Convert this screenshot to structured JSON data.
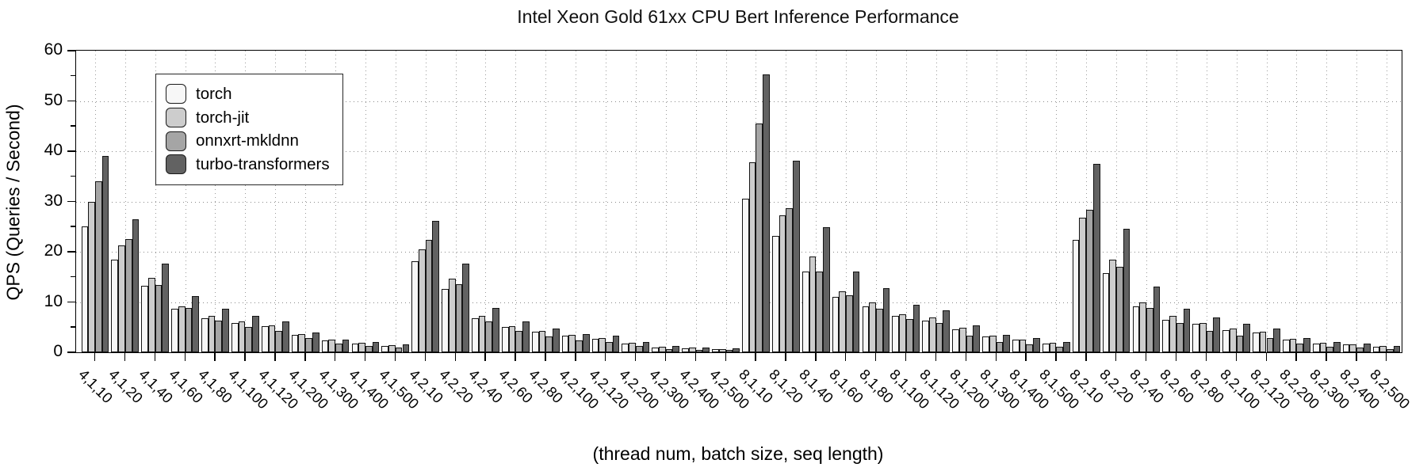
{
  "chart_data": {
    "type": "bar",
    "title": "Intel Xeon Gold 61xx CPU Bert Inference Performance",
    "xlabel": "(thread num, batch size, seq length)",
    "ylabel": "QPS (Queries / Second)",
    "ylim": [
      0,
      60
    ],
    "yticks": [
      0,
      10,
      20,
      30,
      40,
      50,
      60
    ],
    "grid": true,
    "legend_position": "upper-left",
    "categories": [
      "4,1,10",
      "4,1,20",
      "4,1,40",
      "4,1,60",
      "4,1,80",
      "4,1,100",
      "4,1,120",
      "4,1,200",
      "4,1,300",
      "4,1,400",
      "4,1,500",
      "4,2,10",
      "4,2,20",
      "4,2,40",
      "4,2,60",
      "4,2,80",
      "4,2,100",
      "4,2,120",
      "4,2,200",
      "4,2,300",
      "4,2,400",
      "4,2,500",
      "8,1,10",
      "8,1,20",
      "8,1,40",
      "8,1,60",
      "8,1,80",
      "8,1,100",
      "8,1,120",
      "8,1,200",
      "8,1,300",
      "8,1,400",
      "8,1,500",
      "8,2,10",
      "8,2,20",
      "8,2,40",
      "8,2,60",
      "8,2,80",
      "8,2,100",
      "8,2,120",
      "8,2,200",
      "8,2,300",
      "8,2,400",
      "8,2,500"
    ],
    "series": [
      {
        "name": "torch",
        "color": "#f7f7f7",
        "values": [
          25.0,
          18.5,
          13.2,
          8.7,
          6.8,
          5.9,
          5.2,
          3.4,
          2.3,
          1.8,
          1.3,
          18.1,
          12.6,
          6.8,
          5.0,
          4.1,
          3.3,
          2.7,
          1.7,
          1.0,
          0.8,
          0.6,
          30.6,
          23.2,
          16.1,
          11.1,
          9.1,
          7.2,
          6.3,
          4.5,
          3.2,
          2.5,
          1.8,
          22.3,
          15.7,
          9.2,
          6.5,
          5.6,
          4.4,
          4.0,
          2.6,
          1.8,
          1.5,
          1.1
        ]
      },
      {
        "name": "torch-jit",
        "color": "#cdcdcd",
        "values": [
          30.0,
          21.3,
          14.8,
          9.2,
          7.3,
          6.2,
          5.4,
          3.7,
          2.5,
          1.9,
          1.4,
          20.4,
          14.6,
          7.3,
          5.2,
          4.2,
          3.4,
          2.8,
          1.9,
          1.1,
          0.9,
          0.7,
          37.8,
          27.3,
          19.1,
          12.1,
          10.0,
          7.6,
          6.9,
          4.9,
          3.3,
          2.6,
          1.9,
          26.8,
          18.4,
          10.0,
          7.3,
          5.9,
          4.8,
          4.1,
          2.7,
          1.9,
          1.6,
          1.2
        ]
      },
      {
        "name": "onnxrt-mkldnn",
        "color": "#a5a5a5",
        "values": [
          34.0,
          22.5,
          13.4,
          8.9,
          6.3,
          5.1,
          4.3,
          2.8,
          1.7,
          1.2,
          0.9,
          22.3,
          13.5,
          6.2,
          4.3,
          3.1,
          2.4,
          2.0,
          1.2,
          0.7,
          0.5,
          0.4,
          45.5,
          28.7,
          16.1,
          11.3,
          8.6,
          6.6,
          5.9,
          3.3,
          2.1,
          1.5,
          1.1,
          28.4,
          17.0,
          8.8,
          5.9,
          4.3,
          3.3,
          2.8,
          1.7,
          1.1,
          0.9,
          0.7
        ]
      },
      {
        "name": "turbo-transformers",
        "color": "#626262",
        "values": [
          39.0,
          26.5,
          17.7,
          11.2,
          8.6,
          7.2,
          6.1,
          3.9,
          2.6,
          2.0,
          1.5,
          26.1,
          17.7,
          8.8,
          6.2,
          4.7,
          3.7,
          3.3,
          2.0,
          1.3,
          1.0,
          0.8,
          55.2,
          38.1,
          24.9,
          16.0,
          12.7,
          9.4,
          8.4,
          5.3,
          3.5,
          2.8,
          2.0,
          37.5,
          24.5,
          13.0,
          8.6,
          7.0,
          5.6,
          4.8,
          2.9,
          2.1,
          1.8,
          1.3
        ]
      }
    ]
  }
}
